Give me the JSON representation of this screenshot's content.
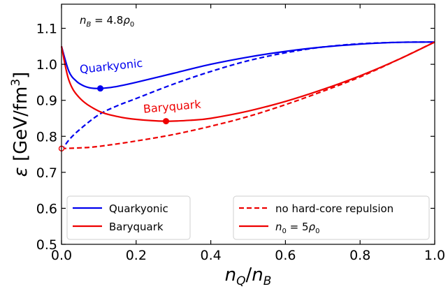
{
  "chart_data": {
    "type": "line",
    "xlabel": "nQ/nB",
    "ylabel": "ε [GeV/fm3]",
    "xlim": [
      0.0,
      1.0
    ],
    "ylim": [
      0.5,
      1.167
    ],
    "xticks": [
      "0.0",
      "0.2",
      "0.4",
      "0.6",
      "0.8",
      "1.0"
    ],
    "yticks": [
      "0.5",
      "0.6",
      "0.7",
      "0.8",
      "0.9",
      "1.0",
      "1.1"
    ],
    "corner_annotation": "nB = 4.8ρ0",
    "series": [
      {
        "name": "Quarkyonic",
        "color": "#0000ee",
        "style": "solid",
        "x": [
          0.0,
          0.02,
          0.04,
          0.06,
          0.08,
          0.104,
          0.14,
          0.2,
          0.3,
          0.4,
          0.5,
          0.6,
          0.7,
          0.8,
          0.9,
          1.0
        ],
        "y": [
          1.05,
          0.98,
          0.953,
          0.94,
          0.934,
          0.933,
          0.937,
          0.95,
          0.975,
          1.0,
          1.02,
          1.036,
          1.048,
          1.056,
          1.061,
          1.062
        ]
      },
      {
        "name": "Quarkyonic (no hard-core repulsion)",
        "color": "#0000ee",
        "style": "dashed",
        "x": [
          0.0,
          0.02,
          0.05,
          0.1,
          0.15,
          0.2,
          0.3,
          0.4,
          0.5,
          0.6,
          0.7,
          0.8,
          0.9,
          1.0
        ],
        "y": [
          0.76,
          0.79,
          0.82,
          0.86,
          0.885,
          0.905,
          0.945,
          0.98,
          1.01,
          1.032,
          1.048,
          1.057,
          1.061,
          1.062
        ]
      },
      {
        "name": "Baryquark",
        "color": "#ee0000",
        "style": "solid",
        "x": [
          0.0,
          0.02,
          0.05,
          0.1,
          0.15,
          0.2,
          0.28,
          0.35,
          0.4,
          0.5,
          0.6,
          0.7,
          0.8,
          0.9,
          1.0
        ],
        "y": [
          1.05,
          0.955,
          0.905,
          0.87,
          0.855,
          0.847,
          0.842,
          0.845,
          0.85,
          0.87,
          0.897,
          0.93,
          0.968,
          1.012,
          1.062
        ]
      },
      {
        "name": "Baryquark (no hard-core repulsion)",
        "color": "#ee0000",
        "style": "dashed",
        "x": [
          0.0,
          0.05,
          0.1,
          0.2,
          0.3,
          0.4,
          0.5,
          0.6,
          0.7,
          0.8,
          0.9,
          1.0
        ],
        "y": [
          0.766,
          0.768,
          0.772,
          0.787,
          0.805,
          0.828,
          0.855,
          0.888,
          0.925,
          0.965,
          1.012,
          1.062
        ]
      }
    ],
    "markers": [
      {
        "x": 0.104,
        "y": 0.933,
        "color": "#0000ee",
        "label": "Quarkyonic",
        "label_pos": [
          0.05,
          0.975
        ],
        "rotation": -6
      },
      {
        "x": 0.28,
        "y": 0.842,
        "color": "#ee0000",
        "label": "Baryquark",
        "label_pos": [
          0.22,
          0.865
        ],
        "rotation": -5
      }
    ],
    "open_markers": [
      {
        "x": 0.0,
        "y": 0.766,
        "color": "#ee0000"
      }
    ],
    "legend_left": {
      "placement": "lower-left",
      "entries": [
        {
          "label": "Quarkyonic",
          "color": "#0000ee",
          "style": "solid"
        },
        {
          "label": "Baryquark",
          "color": "#ee0000",
          "style": "solid"
        }
      ]
    },
    "legend_right": {
      "placement": "lower-right",
      "entries": [
        {
          "label": "no hard-core repulsion",
          "color": "#ee0000",
          "style": "dashed"
        },
        {
          "label": "n0 = 5ρ0",
          "color": "#ee0000",
          "style": "solid"
        }
      ]
    }
  }
}
